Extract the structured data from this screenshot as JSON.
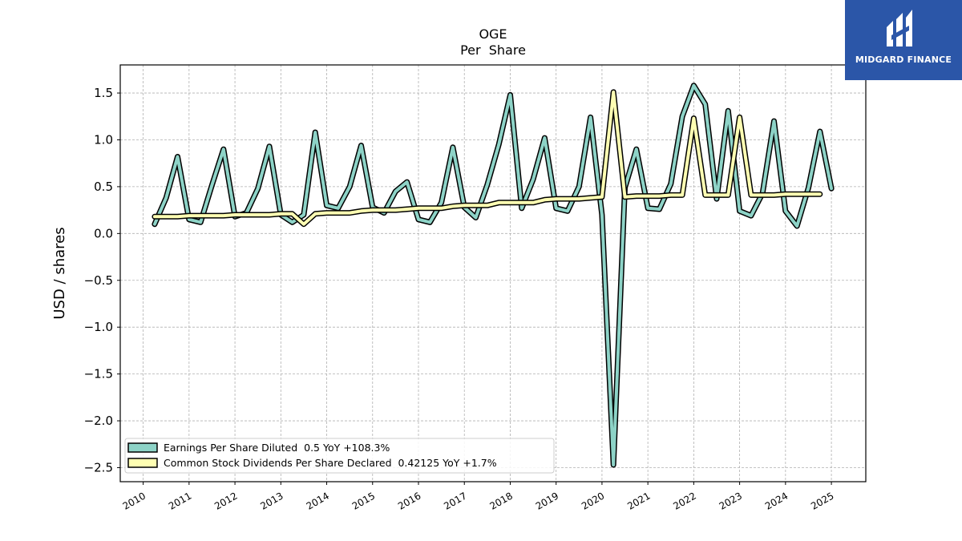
{
  "brand": {
    "name": "MIDGARD FINANCE",
    "bg_color": "#2b56a8"
  },
  "chart_data": {
    "type": "line",
    "title": "OGE",
    "subtitle": "Per  Share",
    "xlabel": "",
    "ylabel": "USD / shares",
    "xlim": [
      2009.5,
      2025.75
    ],
    "ylim": [
      -2.65,
      1.8
    ],
    "grid": true,
    "legend_position": "lower-left",
    "x_ticks": [
      "2010",
      "2011",
      "2012",
      "2013",
      "2014",
      "2015",
      "2016",
      "2017",
      "2018",
      "2019",
      "2020",
      "2021",
      "2022",
      "2023",
      "2024",
      "2025"
    ],
    "y_ticks": [
      -2.5,
      -2.0,
      -1.5,
      -1.0,
      -0.5,
      0.0,
      0.5,
      1.0,
      1.5
    ],
    "y_tick_labels": [
      "−2.5",
      "−2.0",
      "−1.5",
      "−1.0",
      "−0.5",
      "0.0",
      "0.5",
      "1.0",
      "1.5"
    ],
    "series": [
      {
        "name": "Earnings Per Share Diluted",
        "legend_label": "Earnings Per Share Diluted  0.5 YoY +108.3%",
        "color": "#8dd3c7",
        "x": [
          2010.25,
          2010.5,
          2010.75,
          2011.0,
          2011.25,
          2011.5,
          2011.75,
          2012.0,
          2012.25,
          2012.5,
          2012.75,
          2013.0,
          2013.25,
          2013.5,
          2013.75,
          2014.0,
          2014.25,
          2014.5,
          2014.75,
          2015.0,
          2015.25,
          2015.5,
          2015.75,
          2016.0,
          2016.25,
          2016.5,
          2016.75,
          2017.0,
          2017.25,
          2017.5,
          2017.75,
          2018.0,
          2018.25,
          2018.5,
          2018.75,
          2019.0,
          2019.25,
          2019.5,
          2019.75,
          2020.0,
          2020.25,
          2020.5,
          2020.75,
          2021.0,
          2021.25,
          2021.5,
          2021.75,
          2022.0,
          2022.25,
          2022.5,
          2022.75,
          2023.0,
          2023.25,
          2023.5,
          2023.75,
          2024.0,
          2024.25,
          2024.5,
          2024.75,
          2025.0
        ],
        "values": [
          0.1,
          0.38,
          0.82,
          0.15,
          0.12,
          0.52,
          0.9,
          0.18,
          0.22,
          0.48,
          0.93,
          0.2,
          0.12,
          0.2,
          1.08,
          0.3,
          0.27,
          0.5,
          0.94,
          0.28,
          0.22,
          0.45,
          0.55,
          0.15,
          0.12,
          0.33,
          0.92,
          0.28,
          0.17,
          0.52,
          0.95,
          1.48,
          0.27,
          0.58,
          1.02,
          0.27,
          0.24,
          0.5,
          1.24,
          0.2,
          -2.47,
          0.49,
          0.9,
          0.27,
          0.26,
          0.53,
          1.25,
          1.58,
          1.38,
          0.37,
          1.31,
          0.24,
          0.19,
          0.43,
          1.2,
          0.24,
          0.08,
          0.49,
          1.09,
          0.48
        ]
      },
      {
        "name": "Common Stock Dividends Per Share Declared",
        "legend_label": "Common Stock Dividends Per Share Declared  0.42125 YoY +1.7%",
        "color": "#ffffb3",
        "x": [
          2010.25,
          2010.5,
          2010.75,
          2011.0,
          2011.25,
          2011.5,
          2011.75,
          2012.0,
          2012.25,
          2012.5,
          2012.75,
          2013.0,
          2013.25,
          2013.5,
          2013.75,
          2014.0,
          2014.25,
          2014.5,
          2014.75,
          2015.0,
          2015.25,
          2015.5,
          2015.75,
          2016.0,
          2016.25,
          2016.5,
          2016.75,
          2017.0,
          2017.25,
          2017.5,
          2017.75,
          2018.0,
          2018.25,
          2018.5,
          2018.75,
          2019.0,
          2019.25,
          2019.5,
          2019.75,
          2020.0,
          2020.25,
          2020.5,
          2020.75,
          2021.0,
          2021.25,
          2021.5,
          2021.75,
          2022.0,
          2022.25,
          2022.5,
          2022.75,
          2023.0,
          2023.25,
          2023.5,
          2023.75,
          2024.0,
          2024.25,
          2024.5,
          2024.75
        ],
        "values": [
          0.18,
          0.18,
          0.18,
          0.19,
          0.19,
          0.19,
          0.19,
          0.2,
          0.2,
          0.2,
          0.2,
          0.21,
          0.21,
          0.1,
          0.21,
          0.22,
          0.22,
          0.22,
          0.24,
          0.25,
          0.25,
          0.25,
          0.26,
          0.27,
          0.27,
          0.27,
          0.29,
          0.3,
          0.3,
          0.3,
          0.33,
          0.33,
          0.33,
          0.33,
          0.36,
          0.37,
          0.37,
          0.37,
          0.38,
          0.39,
          1.51,
          0.39,
          0.4,
          0.4,
          0.4,
          0.41,
          0.41,
          1.23,
          0.41,
          0.41,
          0.41,
          1.24,
          0.41,
          0.41,
          0.41,
          0.42,
          0.42,
          0.42,
          0.42
        ]
      }
    ]
  }
}
